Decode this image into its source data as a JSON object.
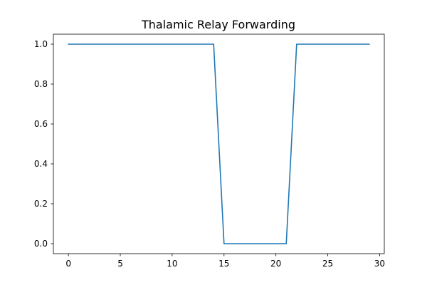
{
  "chart_data": {
    "type": "line",
    "title": "Thalamic Relay Forwarding",
    "xlabel": "",
    "ylabel": "",
    "xlim": [
      -1.45,
      30.45
    ],
    "ylim": [
      -0.05,
      1.05
    ],
    "xticks": [
      0,
      5,
      10,
      15,
      20,
      25,
      30
    ],
    "yticks": [
      0.0,
      0.2,
      0.4,
      0.6,
      0.8,
      1.0
    ],
    "xtick_labels": [
      "0",
      "5",
      "10",
      "15",
      "20",
      "25",
      "30"
    ],
    "ytick_labels": [
      "0.0",
      "0.2",
      "0.4",
      "0.6",
      "0.8",
      "1.0"
    ],
    "grid": false,
    "series": [
      {
        "color": "#1f77b4",
        "x": [
          0,
          1,
          2,
          3,
          4,
          5,
          6,
          7,
          8,
          9,
          10,
          11,
          12,
          13,
          14,
          15,
          16,
          17,
          18,
          19,
          20,
          21,
          22,
          23,
          24,
          25,
          26,
          27,
          28,
          29
        ],
        "y": [
          1,
          1,
          1,
          1,
          1,
          1,
          1,
          1,
          1,
          1,
          1,
          1,
          1,
          1,
          1,
          0,
          0,
          0,
          0,
          0,
          0,
          0,
          1,
          1,
          1,
          1,
          1,
          1,
          1,
          1
        ]
      }
    ]
  }
}
